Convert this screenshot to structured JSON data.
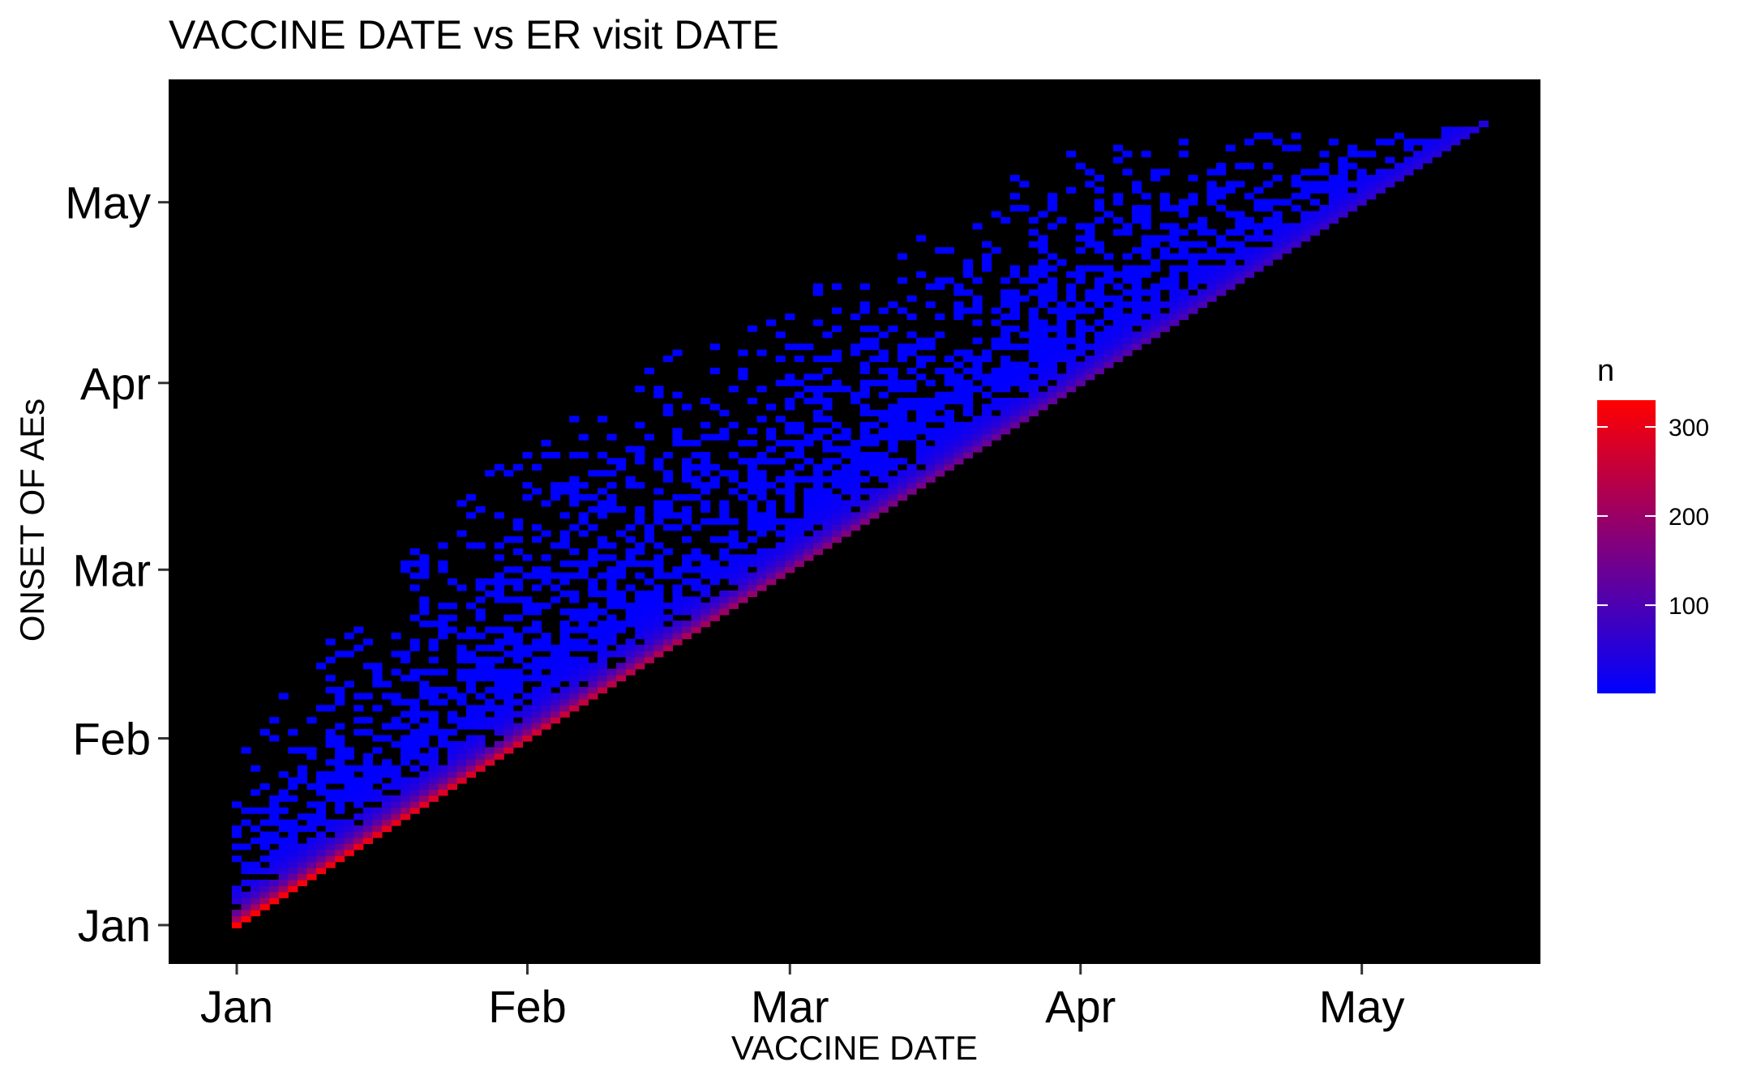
{
  "chart_data": {
    "type": "heatmap",
    "title": "VACCINE DATE vs ER visit DATE",
    "xlabel": "VACCINE DATE",
    "ylabel": "ONSET OF AEs",
    "x_ticks": [
      "Jan",
      "Feb",
      "Mar",
      "Apr",
      "May"
    ],
    "y_ticks": [
      "Jan",
      "Feb",
      "Mar",
      "Apr",
      "May"
    ],
    "x_range": [
      "2021-01-01",
      "2021-05-14"
    ],
    "y_range": [
      "2021-01-01",
      "2021-05-14"
    ],
    "background": "#000000",
    "grid": false,
    "legend": {
      "title": "n",
      "position": "right",
      "color_low": "#0000ff",
      "color_high": "#ff0000",
      "range": [
        1,
        330
      ],
      "ticks": [
        100,
        200,
        300
      ]
    },
    "diagonal_max_n": [
      {
        "vaccine_date": "2021-01-01",
        "n": 330
      },
      {
        "vaccine_date": "2021-02-01",
        "n": 270
      },
      {
        "vaccine_date": "2021-03-01",
        "n": 180
      },
      {
        "vaccine_date": "2021-04-01",
        "n": 120
      },
      {
        "vaccine_date": "2021-05-14",
        "n": 40
      }
    ],
    "max_onset_by_vaccine_date": [
      {
        "vaccine_date": "2021-01-01",
        "max_onset": "2021-01-31"
      },
      {
        "vaccine_date": "2021-02-01",
        "max_onset": "2021-03-25"
      },
      {
        "vaccine_date": "2021-03-01",
        "max_onset": "2021-04-16"
      },
      {
        "vaccine_date": "2021-04-01",
        "max_onset": "2021-05-11"
      },
      {
        "vaccine_date": "2021-05-14",
        "max_onset": "2021-05-14"
      }
    ]
  }
}
